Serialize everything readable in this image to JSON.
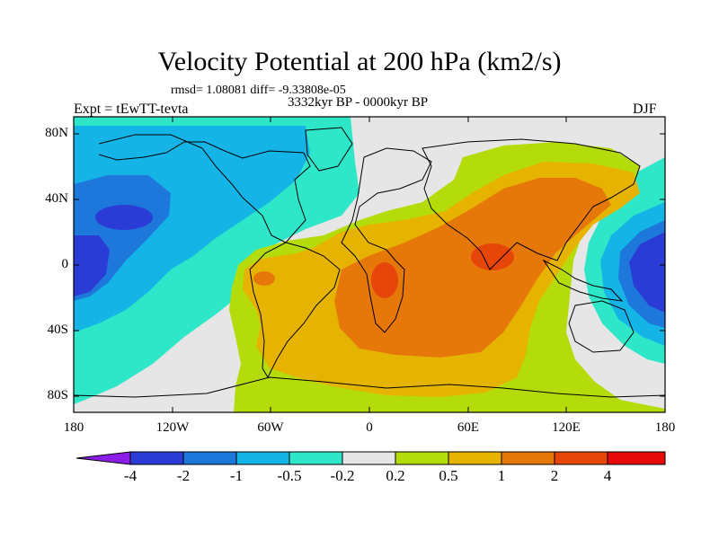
{
  "title": "Velocity Potential at 200 hPa (km2/s)",
  "stats": "rmsd= 1.08081 diff= -9.33808e-05",
  "period": "3332kyr BP - 0000kyr BP",
  "experiment": "Expt = tEwTT-tevta",
  "season": "DJF",
  "lat_ticks": [
    "80N",
    "40N",
    "0",
    "40S",
    "80S"
  ],
  "lon_ticks": [
    "180",
    "120W",
    "60W",
    "0",
    "60E",
    "120E",
    "180"
  ],
  "colorbar": {
    "labels": [
      "-4",
      "-2",
      "-1",
      "-0.5",
      "-0.2",
      "0.2",
      "0.5",
      "1",
      "2",
      "4"
    ],
    "colors": [
      "#8a1ee6",
      "#2b3cd6",
      "#1e78dc",
      "#14b4e6",
      "#2ee6c8",
      "#e6e6e6",
      "#b4dc0a",
      "#e6b400",
      "#e6780a",
      "#e6460a",
      "#e60a0a"
    ]
  },
  "colors": {
    "strong_negative": "#2b3cd6",
    "negative": "#1e78dc",
    "weak_negative": "#14b4e6",
    "near_zero_negative": "#2ee6c8",
    "neutral": "#e6e6e6",
    "weak_positive": "#b4dc0a",
    "positive": "#e6b400",
    "strong_positive": "#e6780a",
    "very_strong_positive": "#e6460a"
  }
}
